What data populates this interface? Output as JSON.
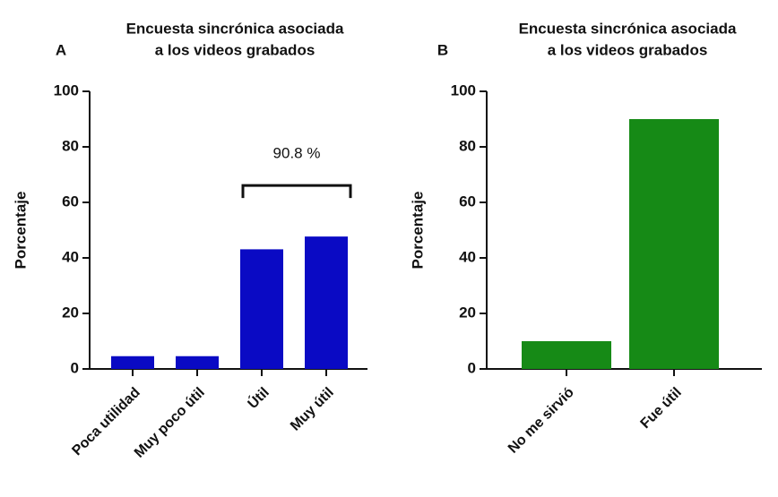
{
  "chart_data": [
    {
      "type": "bar",
      "panel_label": "A",
      "title": [
        "Encuesta sincrónica asociada",
        "a los videos grabados"
      ],
      "y_label": "Porcentaje",
      "categories": [
        "Poca utilidad",
        "Muy poco útil",
        "Útil",
        "Muy útil"
      ],
      "values": [
        4.6,
        4.6,
        43.1,
        47.7
      ],
      "color": "#0a0ac4",
      "ylim": [
        0,
        100
      ],
      "yticks": [
        0,
        20,
        40,
        60,
        80,
        100
      ],
      "annotation": "90.8 %"
    },
    {
      "type": "bar",
      "panel_label": "B",
      "title": [
        "Encuesta sincrónica asociada",
        "a los videos grabados"
      ],
      "y_label": "Porcentaje",
      "categories": [
        "No me sirvió",
        "Fue útil"
      ],
      "values": [
        10,
        90
      ],
      "color": "#168a16",
      "ylim": [
        0,
        100
      ],
      "yticks": [
        0,
        20,
        40,
        60,
        80,
        100
      ]
    }
  ]
}
